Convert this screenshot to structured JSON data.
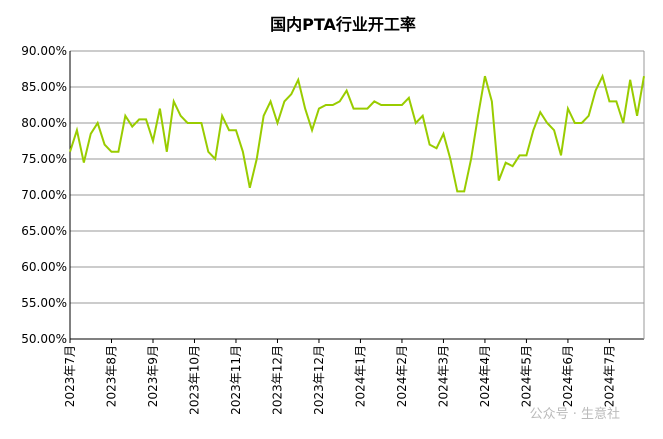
{
  "chart_data": {
    "type": "line",
    "title": "国内PTA行业开工率",
    "categories": [
      "2023年7月",
      null,
      null,
      null,
      null,
      null,
      "2023年8月",
      null,
      null,
      null,
      null,
      null,
      "2023年9月",
      null,
      null,
      null,
      null,
      null,
      "2023年10月",
      null,
      null,
      null,
      null,
      null,
      "2023年11月",
      null,
      null,
      null,
      null,
      null,
      "2023年12月",
      null,
      null,
      null,
      null,
      null,
      "2023年12月",
      null,
      null,
      null,
      null,
      null,
      "2024年1月",
      null,
      null,
      null,
      null,
      null,
      "2024年2月",
      null,
      null,
      null,
      null,
      null,
      "2024年3月",
      null,
      null,
      null,
      null,
      null,
      "2024年4月",
      null,
      null,
      null,
      null,
      null,
      "2024年5月",
      null,
      null,
      null,
      null,
      null,
      "2024年6月",
      null,
      null,
      null,
      null,
      null,
      "2024年7月",
      null,
      null,
      null,
      null,
      null
    ],
    "series": [
      {
        "name": "国内PTA行业开工率",
        "color": "#99cc00",
        "values": [
          76,
          79,
          74.5,
          78.5,
          80,
          77,
          76,
          76,
          81,
          79.5,
          80.5,
          80.5,
          77.5,
          82,
          76,
          83,
          81,
          80,
          80,
          80,
          76,
          75,
          81,
          79,
          79,
          76,
          71,
          75,
          81,
          83,
          80,
          83,
          84,
          86,
          82,
          79,
          82,
          82.5,
          82.5,
          83,
          84.5,
          82,
          82,
          82,
          83,
          82.5,
          82.5,
          82.5,
          82.5,
          83.5,
          80,
          81,
          77,
          76.5,
          78.5,
          75,
          70.5,
          70.5,
          75,
          81,
          86.5,
          83,
          72,
          74.5,
          74,
          75.5,
          75.5,
          79,
          81.5,
          80,
          79,
          75.5,
          82,
          80,
          80,
          81,
          84.5,
          86.5,
          83,
          83,
          80,
          86,
          81,
          86.5
        ]
      }
    ],
    "ylim": [
      50,
      90
    ],
    "yticks": [
      {
        "value": 50,
        "label": "50.00%"
      },
      {
        "value": 55,
        "label": "55.00%"
      },
      {
        "value": 60,
        "label": "60.00%"
      },
      {
        "value": 65,
        "label": "65.00%"
      },
      {
        "value": 70,
        "label": "70.00%"
      },
      {
        "value": 75,
        "label": "75.00%"
      },
      {
        "value": 80,
        "label": "80.00%"
      },
      {
        "value": 85,
        "label": "85.00%"
      },
      {
        "value": 90,
        "label": "90.00%"
      }
    ],
    "grid": true,
    "watermark": "公众号 · 生意社"
  }
}
